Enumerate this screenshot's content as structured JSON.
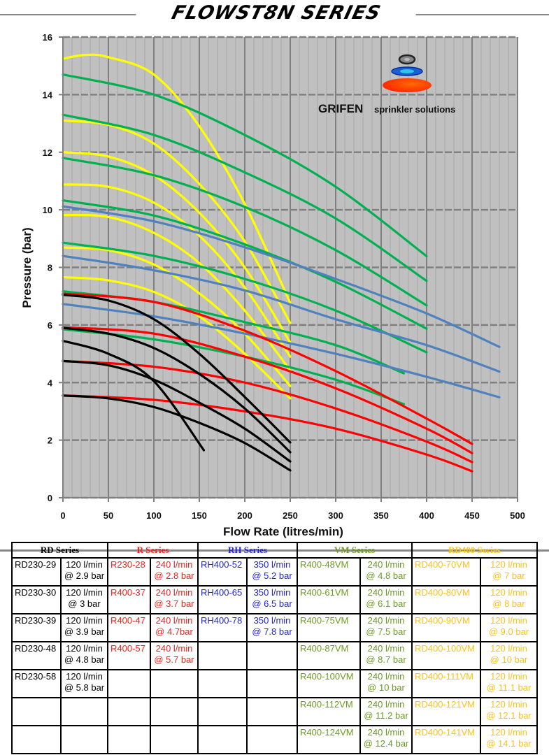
{
  "header": {
    "title": "FLOWST8N SERIES"
  },
  "brand": {
    "name": "GRIFEN",
    "tagline": "sprinkler solutions",
    "logo_icon": "stacked-sprinkler-discs-icon"
  },
  "chart_data": {
    "type": "line",
    "title": "FLOWST8N SERIES",
    "xlabel": "Flow Rate (litres/min)",
    "ylabel": "Pressure (bar)",
    "xlim": [
      0,
      500
    ],
    "ylim": [
      0,
      16
    ],
    "x_ticks": [
      0,
      50,
      100,
      150,
      200,
      250,
      300,
      350,
      400,
      450,
      500
    ],
    "y_ticks": [
      0,
      2,
      4,
      6,
      8,
      10,
      12,
      14,
      16
    ],
    "grid": true,
    "background": "#c0c0c0",
    "legend": "none",
    "series": [
      {
        "name": "RD230-58",
        "group": "RD Series",
        "color": "#000000",
        "x": [
          0,
          50,
          100,
          150,
          200,
          250
        ],
        "y": [
          7.05,
          6.85,
          6.2,
          5.0,
          3.5,
          1.92
        ]
      },
      {
        "name": "RD230-48",
        "group": "RD Series",
        "color": "#000000",
        "x": [
          0,
          50,
          100,
          150,
          200,
          250
        ],
        "y": [
          5.9,
          5.7,
          5.2,
          4.3,
          3.1,
          1.58
        ]
      },
      {
        "name": "RD230-39",
        "group": "RD Series",
        "color": "#000000",
        "x": [
          0,
          50,
          100,
          155
        ],
        "y": [
          5.45,
          5.0,
          4.05,
          1.65
        ]
      },
      {
        "name": "RD230-30",
        "group": "RD Series",
        "color": "#000000",
        "x": [
          0,
          50,
          100,
          150,
          200,
          250
        ],
        "y": [
          4.75,
          4.6,
          4.1,
          3.3,
          2.4,
          1.26
        ]
      },
      {
        "name": "RD230-29",
        "group": "RD Series",
        "color": "#000000",
        "x": [
          0,
          50,
          100,
          150,
          200,
          250
        ],
        "y": [
          3.55,
          3.45,
          3.15,
          2.6,
          1.9,
          0.95
        ]
      },
      {
        "name": "R400-57",
        "group": "R Series",
        "color": "#ff0000",
        "x": [
          0,
          100,
          200,
          300,
          400,
          450
        ],
        "y": [
          7.09,
          6.8,
          5.8,
          4.4,
          2.75,
          1.87
        ]
      },
      {
        "name": "R400-47",
        "group": "R Series",
        "color": "#ff0000",
        "x": [
          0,
          100,
          200,
          300,
          400,
          450
        ],
        "y": [
          5.92,
          5.7,
          4.9,
          3.8,
          2.4,
          1.55
        ]
      },
      {
        "name": "R400-37",
        "group": "R Series",
        "color": "#ff0000",
        "x": [
          0,
          100,
          200,
          300,
          400,
          450
        ],
        "y": [
          4.75,
          4.55,
          4.0,
          3.1,
          1.95,
          1.24
        ]
      },
      {
        "name": "R230-28",
        "group": "R Series",
        "color": "#ff0000",
        "x": [
          0,
          100,
          200,
          300,
          400,
          450
        ],
        "y": [
          3.55,
          3.4,
          3.0,
          2.4,
          1.5,
          0.92
        ]
      },
      {
        "name": "RH400-78",
        "group": "RH Series",
        "color": "#4f81bd",
        "x": [
          0,
          100,
          200,
          300,
          400,
          480
        ],
        "y": [
          10.12,
          9.6,
          8.7,
          7.6,
          6.4,
          5.24
        ]
      },
      {
        "name": "RH400-65",
        "group": "RH Series",
        "color": "#4f81bd",
        "x": [
          0,
          100,
          200,
          300,
          400,
          480
        ],
        "y": [
          8.4,
          7.9,
          7.2,
          6.2,
          5.3,
          4.38
        ]
      },
      {
        "name": "RH400-52",
        "group": "RH Series",
        "color": "#4f81bd",
        "x": [
          0,
          100,
          200,
          300,
          400,
          480
        ],
        "y": [
          6.73,
          6.3,
          5.7,
          5.0,
          4.2,
          3.49
        ]
      },
      {
        "name": "R400-124VM",
        "group": "VM Series",
        "color": "#00b050",
        "x": [
          0,
          100,
          200,
          300,
          400
        ],
        "y": [
          14.7,
          14.0,
          12.6,
          10.8,
          8.39
        ]
      },
      {
        "name": "R400-112VM",
        "group": "VM Series",
        "color": "#00b050",
        "x": [
          0,
          100,
          200,
          300,
          400
        ],
        "y": [
          13.3,
          12.6,
          11.3,
          9.7,
          7.53
        ]
      },
      {
        "name": "R400-100VM",
        "group": "VM Series",
        "color": "#00b050",
        "x": [
          0,
          100,
          200,
          300,
          400
        ],
        "y": [
          11.8,
          11.2,
          10.1,
          8.6,
          6.68
        ]
      },
      {
        "name": "R400-87VM",
        "group": "VM Series",
        "color": "#00b050",
        "x": [
          0,
          100,
          200,
          300,
          400
        ],
        "y": [
          10.33,
          9.8,
          8.8,
          7.5,
          5.87
        ]
      },
      {
        "name": "R400-75VM",
        "group": "VM Series",
        "color": "#00b050",
        "x": [
          0,
          100,
          200,
          300,
          400
        ],
        "y": [
          8.86,
          8.4,
          7.6,
          6.5,
          5.05
        ]
      },
      {
        "name": "R400-61VM",
        "group": "VM Series",
        "color": "#00b050",
        "x": [
          0,
          100,
          200,
          300,
          375
        ],
        "y": [
          7.17,
          6.8,
          6.1,
          5.3,
          4.32
        ]
      },
      {
        "name": "R400-48VM",
        "group": "VM Series",
        "color": "#00b050",
        "x": [
          0,
          100,
          200,
          300,
          375
        ],
        "y": [
          5.85,
          5.5,
          4.9,
          4.1,
          3.25
        ]
      },
      {
        "name": "RD400-141VM",
        "group": "RD400 Series",
        "color": "#ffff00",
        "x": [
          0,
          25,
          50,
          100,
          150,
          200,
          250
        ],
        "y": [
          15.25,
          15.38,
          15.3,
          14.7,
          12.9,
          10.2,
          6.77
        ]
      },
      {
        "name": "RD400-121VM",
        "group": "RD400 Series",
        "color": "#ffff00",
        "x": [
          0,
          50,
          100,
          150,
          200,
          250
        ],
        "y": [
          13.1,
          12.95,
          12.3,
          10.9,
          8.9,
          6.07
        ]
      },
      {
        "name": "RD400-111VM",
        "group": "RD400 Series",
        "color": "#ffff00",
        "x": [
          0,
          50,
          100,
          150,
          200,
          250
        ],
        "y": [
          12.0,
          11.85,
          11.2,
          9.9,
          8.0,
          5.39
        ]
      },
      {
        "name": "RD400-100VM",
        "group": "RD400 Series",
        "color": "#ffff00",
        "x": [
          0,
          50,
          100,
          150,
          200,
          250
        ],
        "y": [
          10.88,
          10.8,
          10.25,
          9.1,
          7.3,
          4.9
        ]
      },
      {
        "name": "RD400-90VM",
        "group": "RD400 Series",
        "color": "#ffff00",
        "x": [
          0,
          50,
          100,
          150,
          200,
          250
        ],
        "y": [
          9.82,
          9.75,
          9.2,
          8.15,
          6.5,
          4.42
        ]
      },
      {
        "name": "RD400-80VM",
        "group": "RD400 Series",
        "color": "#ffff00",
        "x": [
          0,
          50,
          100,
          150,
          200,
          250
        ],
        "y": [
          8.69,
          8.6,
          8.1,
          7.1,
          5.7,
          3.88
        ]
      },
      {
        "name": "RD400-70VM",
        "group": "RD400 Series",
        "color": "#ffff00",
        "x": [
          0,
          50,
          100,
          150,
          200,
          250
        ],
        "y": [
          7.66,
          7.55,
          7.15,
          6.3,
          5.0,
          3.45
        ]
      }
    ]
  },
  "table": {
    "groups": [
      {
        "label": "RD Series",
        "color": "#000000"
      },
      {
        "label": "R Series",
        "color": "#ff1a1a"
      },
      {
        "label": "RH Series",
        "color": "#2222dd"
      },
      {
        "label": "VM Series",
        "color": "#6b9b1e"
      },
      {
        "label": "RD400 Series",
        "color": "#ffc20e"
      }
    ],
    "rows": [
      [
        {
          "model": "RD230-29",
          "rating": "120 l/min @ 2.9 bar"
        },
        {
          "model": "R230-28",
          "rating": "240 l/min @ 2.8 bar"
        },
        {
          "model": "RH400-52",
          "rating": "350 l/min @ 5.2 bar"
        },
        {
          "model": "R400-48VM",
          "rating": "240 l/min @ 4.8 bar"
        },
        {
          "model": "RD400-70VM",
          "rating": "120 l/min @ 7 bar"
        }
      ],
      [
        {
          "model": "RD230-30",
          "rating": "120 l/min @ 3 bar"
        },
        {
          "model": "R400-37",
          "rating": "240 l/min @ 3.7 bar"
        },
        {
          "model": "RH400-65",
          "rating": "350 l/min @ 6.5 bar"
        },
        {
          "model": "R400-61VM",
          "rating": "240 l/min @ 6.1 bar"
        },
        {
          "model": "RD400-80VM",
          "rating": "120 l/min @ 8 bar"
        }
      ],
      [
        {
          "model": "RD230-39",
          "rating": "120 l/min @ 3.9 bar"
        },
        {
          "model": "R400-47",
          "rating": "240 l/min @ 4.7bar"
        },
        {
          "model": "RH400-78",
          "rating": "350 l/min @ 7.8 bar"
        },
        {
          "model": "R400-75VM",
          "rating": "240 l/min @ 7.5 bar"
        },
        {
          "model": "RD400-90VM",
          "rating": "120 l/min @ 9.0 bar"
        }
      ],
      [
        {
          "model": "RD230-48",
          "rating": "120 l/min @ 4.8 bar"
        },
        {
          "model": "R400-57",
          "rating": "240 l/min @ 5.7 bar"
        },
        {
          "model": "",
          "rating": ""
        },
        {
          "model": "R400-87VM",
          "rating": "240 l/min @ 8.7 bar"
        },
        {
          "model": "RD400-100VM",
          "rating": "120 l/min @ 10 bar"
        }
      ],
      [
        {
          "model": "RD230-58",
          "rating": "120 l/min @ 5.8 bar"
        },
        {
          "model": "",
          "rating": ""
        },
        {
          "model": "",
          "rating": ""
        },
        {
          "model": "R400-100VM",
          "rating": "240 l/min @ 10 bar"
        },
        {
          "model": "RD400-111VM",
          "rating": "120 l/min @ 11.1 bar"
        }
      ],
      [
        {
          "model": "",
          "rating": ""
        },
        {
          "model": "",
          "rating": ""
        },
        {
          "model": "",
          "rating": ""
        },
        {
          "model": "R400-112VM",
          "rating": "240 l/min @ 11.2 bar"
        },
        {
          "model": "RD400-121VM",
          "rating": "120 l/min @ 12.1 bar"
        }
      ],
      [
        {
          "model": "",
          "rating": ""
        },
        {
          "model": "",
          "rating": ""
        },
        {
          "model": "",
          "rating": ""
        },
        {
          "model": "R400-124VM",
          "rating": "240 l/min @ 12.4 bar"
        },
        {
          "model": "RD400-141VM",
          "rating": "120 l/min @ 14.1 bar"
        }
      ]
    ]
  }
}
